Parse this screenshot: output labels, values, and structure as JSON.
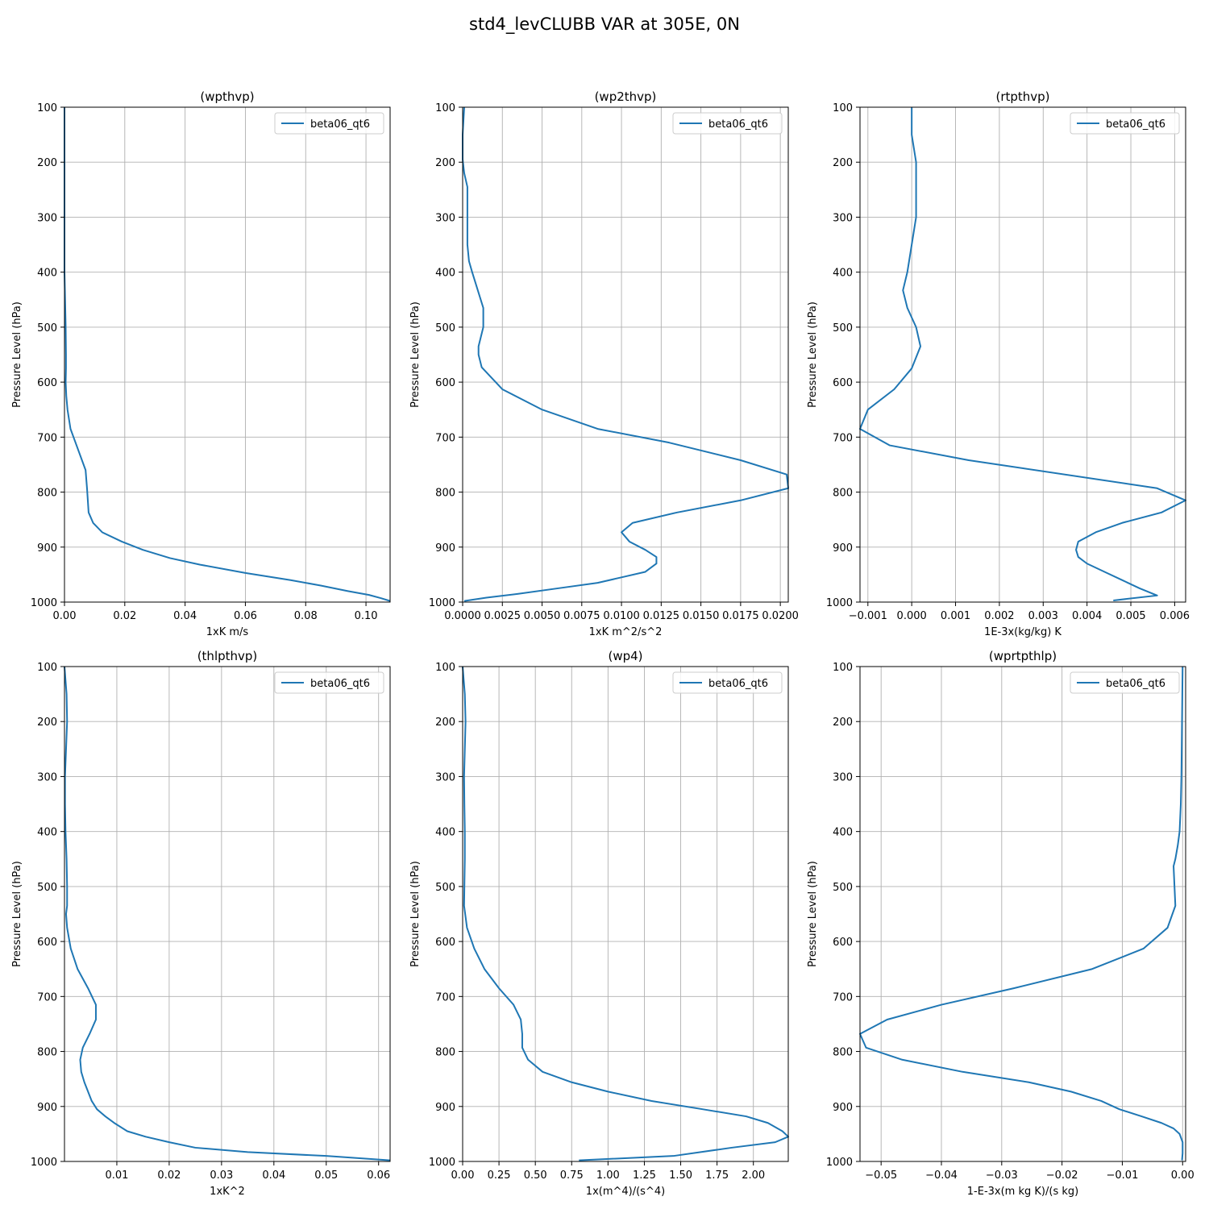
{
  "suptitle": "std4_levCLUBB VAR at 305E, 0N",
  "chart_data": [
    {
      "type": "line",
      "title": "(wpthvp)",
      "xlabel": "1xK m/s",
      "ylabel": "Pressure Level (hPa)",
      "xlim": [
        0.0,
        0.108
      ],
      "ylim": [
        1000,
        100
      ],
      "y_inverted": true,
      "xticks": [
        0.0,
        0.02,
        0.04,
        0.06,
        0.08,
        0.1
      ],
      "xticklabels": [
        "0.00",
        "0.02",
        "0.04",
        "0.06",
        "0.08",
        "0.10"
      ],
      "yticks": [
        100,
        200,
        300,
        400,
        500,
        600,
        700,
        800,
        900,
        1000
      ],
      "grid": true,
      "legend": "upper right",
      "series": [
        {
          "name": "beta06_qt6",
          "color": "#1f77b4",
          "x": [
            0.0,
            0.0,
            0.0,
            0.0,
            0.0,
            0.0002,
            0.0004,
            0.0005,
            0.0005,
            0.0004,
            0.0006,
            0.001,
            0.002,
            0.004,
            0.007,
            0.0075,
            0.008,
            0.0095,
            0.0125,
            0.019,
            0.026,
            0.035,
            0.045,
            0.06,
            0.075,
            0.085,
            0.094,
            0.101,
            0.105,
            0.108
          ],
          "y": [
            100,
            200,
            300,
            350,
            400,
            450,
            500,
            550,
            575,
            600,
            625,
            650,
            685,
            715,
            760,
            795,
            837,
            856,
            873,
            890,
            905,
            920,
            932,
            947,
            960,
            970,
            980,
            987,
            993,
            998
          ]
        }
      ]
    },
    {
      "type": "line",
      "title": "(wp2thvp)",
      "xlabel": "1xK m^2/s^2",
      "ylabel": "Pressure Level (hPa)",
      "xlim": [
        0.0,
        0.0205
      ],
      "ylim": [
        1000,
        100
      ],
      "y_inverted": true,
      "xticks": [
        0.0,
        0.0025,
        0.005,
        0.0075,
        0.01,
        0.0125,
        0.015,
        0.0175,
        0.02
      ],
      "xticklabels": [
        "0.0000",
        "0.0025",
        "0.0050",
        "0.0075",
        "0.0100",
        "0.0125",
        "0.0150",
        "0.0175",
        "0.0200"
      ],
      "yticks": [
        100,
        200,
        300,
        400,
        500,
        600,
        700,
        800,
        900,
        1000
      ],
      "grid": true,
      "legend": "upper right",
      "series": [
        {
          "name": "beta06_qt6",
          "color": "#1f77b4",
          "x": [
            0.0001,
            0.0,
            0.0,
            0.0001,
            0.0003,
            0.0003,
            0.0003,
            0.0004,
            0.0006,
            0.0013,
            0.0013,
            0.001,
            0.001,
            0.0012,
            0.0025,
            0.005,
            0.0085,
            0.013,
            0.0175,
            0.0204,
            0.0205,
            0.0175,
            0.0135,
            0.0107,
            0.01,
            0.0105,
            0.0115,
            0.0122,
            0.0122,
            0.0115,
            0.01,
            0.0085,
            0.006,
            0.0035,
            0.0015,
            0.0001
          ],
          "y": [
            100,
            150,
            195,
            220,
            245,
            300,
            350,
            380,
            400,
            465,
            500,
            535,
            550,
            573,
            613,
            650,
            685,
            710,
            742,
            768,
            793,
            815,
            837,
            856,
            873,
            890,
            905,
            918,
            930,
            945,
            955,
            965,
            975,
            985,
            992,
            998
          ]
        }
      ]
    },
    {
      "type": "line",
      "title": "(rtpthvp)",
      "xlabel": "1E-3x(kg/kg) K",
      "ylabel": "Pressure Level (hPa)",
      "xlim": [
        -0.00118,
        0.00625
      ],
      "ylim": [
        1000,
        100
      ],
      "y_inverted": true,
      "xticks": [
        -0.001,
        0.0,
        0.001,
        0.002,
        0.003,
        0.004,
        0.005,
        0.006
      ],
      "xticklabels": [
        "−0.001",
        "0.000",
        "0.001",
        "0.002",
        "0.003",
        "0.004",
        "0.005",
        "0.006"
      ],
      "yticks": [
        100,
        200,
        300,
        400,
        500,
        600,
        700,
        800,
        900,
        1000
      ],
      "grid": true,
      "legend": "upper right",
      "series": [
        {
          "name": "beta06_qt6",
          "color": "#1f77b4",
          "x": [
            0.0,
            0.0,
            0.0001,
            0.0001,
            0.0001,
            0.0,
            -0.0001,
            -0.0002,
            -0.0001,
            0.0001,
            0.0002,
            0.0,
            -0.0004,
            -0.001,
            -0.00118,
            -0.0005,
            0.0013,
            0.0056,
            0.00625,
            0.0057,
            0.0048,
            0.0042,
            0.0038,
            0.00375,
            0.0038,
            0.004,
            0.0044,
            0.0048,
            0.0052,
            0.0056,
            0.0046
          ],
          "y": [
            100,
            150,
            200,
            250,
            300,
            350,
            400,
            433,
            465,
            500,
            535,
            575,
            613,
            650,
            685,
            715,
            742,
            793,
            815,
            837,
            856,
            873,
            890,
            905,
            918,
            930,
            945,
            960,
            975,
            988,
            997
          ]
        }
      ]
    },
    {
      "type": "line",
      "title": "(thlpthvp)",
      "xlabel": "1xK^2",
      "ylabel": "Pressure Level (hPa)",
      "xlim": [
        0.0,
        0.0622
      ],
      "ylim": [
        1000,
        100
      ],
      "y_inverted": true,
      "xticks": [
        0.01,
        0.02,
        0.03,
        0.04,
        0.05,
        0.06
      ],
      "xticklabels": [
        "0.01",
        "0.02",
        "0.03",
        "0.04",
        "0.05",
        "0.06"
      ],
      "yticks": [
        100,
        200,
        300,
        400,
        500,
        600,
        700,
        800,
        900,
        1000
      ],
      "grid": true,
      "legend": "upper right",
      "series": [
        {
          "name": "beta06_qt6",
          "color": "#1f77b4",
          "x": [
            0.0,
            0.0004,
            0.0005,
            0.0003,
            0.0001,
            0.0001,
            0.0002,
            0.0004,
            0.0005,
            0.0005,
            0.0003,
            0.0005,
            0.0012,
            0.0025,
            0.0045,
            0.006,
            0.006,
            0.0048,
            0.0035,
            0.003,
            0.0032,
            0.0038,
            0.0045,
            0.0052,
            0.0062,
            0.0078,
            0.0095,
            0.012,
            0.0155,
            0.02,
            0.025,
            0.035,
            0.05,
            0.0622
          ],
          "y": [
            100,
            150,
            200,
            250,
            300,
            350,
            400,
            450,
            500,
            535,
            550,
            575,
            613,
            650,
            685,
            715,
            742,
            768,
            793,
            815,
            837,
            856,
            873,
            890,
            905,
            918,
            930,
            945,
            955,
            965,
            975,
            983,
            990,
            998
          ]
        }
      ]
    },
    {
      "type": "line",
      "title": "(wp4)",
      "xlabel": "1x(m^4)/(s^4)",
      "ylabel": "Pressure Level (hPa)",
      "xlim": [
        0.0,
        2.24
      ],
      "ylim": [
        1000,
        100
      ],
      "y_inverted": true,
      "xticks": [
        0.0,
        0.25,
        0.5,
        0.75,
        1.0,
        1.25,
        1.5,
        1.75,
        2.0
      ],
      "xticklabels": [
        "0.00",
        "0.25",
        "0.50",
        "0.75",
        "1.00",
        "1.25",
        "1.50",
        "1.75",
        "2.00"
      ],
      "yticks": [
        100,
        200,
        300,
        400,
        500,
        600,
        700,
        800,
        900,
        1000
      ],
      "grid": true,
      "legend": "upper right",
      "series": [
        {
          "name": "beta06_qt6",
          "color": "#1f77b4",
          "x": [
            0.0,
            0.015,
            0.02,
            0.015,
            0.01,
            0.012,
            0.015,
            0.015,
            0.012,
            0.01,
            0.03,
            0.08,
            0.15,
            0.25,
            0.35,
            0.4,
            0.41,
            0.41,
            0.45,
            0.55,
            0.75,
            1.0,
            1.3,
            1.65,
            1.95,
            2.1,
            2.2,
            2.24,
            2.15,
            1.85,
            1.45,
            0.8
          ],
          "y": [
            100,
            150,
            200,
            250,
            300,
            350,
            400,
            450,
            500,
            535,
            575,
            613,
            650,
            685,
            715,
            742,
            768,
            793,
            815,
            837,
            856,
            873,
            890,
            905,
            918,
            930,
            945,
            955,
            965,
            975,
            990,
            998
          ]
        }
      ]
    },
    {
      "type": "line",
      "title": "(wprtpthlp)",
      "xlabel": "1-E-3x(m kg K)/(s kg)",
      "ylabel": "Pressure Level (hPa)",
      "xlim": [
        -0.0535,
        0.0005
      ],
      "ylim": [
        1000,
        100
      ],
      "y_inverted": true,
      "xticks": [
        -0.05,
        -0.04,
        -0.03,
        -0.02,
        -0.01,
        0.0
      ],
      "xticklabels": [
        "−0.05",
        "−0.04",
        "−0.03",
        "−0.02",
        "−0.01",
        "0.00"
      ],
      "yticks": [
        100,
        200,
        300,
        400,
        500,
        600,
        700,
        800,
        900,
        1000
      ],
      "grid": true,
      "legend": "upper right",
      "series": [
        {
          "name": "beta06_qt6",
          "color": "#1f77b4",
          "x": [
            0.0,
            -0.0001,
            -0.0002,
            -0.0003,
            -0.0005,
            -0.0008,
            -0.0012,
            -0.0015,
            -0.0012,
            -0.0025,
            -0.0065,
            -0.015,
            -0.028,
            -0.04,
            -0.049,
            -0.0535,
            -0.0525,
            -0.0465,
            -0.0365,
            -0.0255,
            -0.0185,
            -0.0135,
            -0.0105,
            -0.0068,
            -0.0035,
            -0.0015,
            -0.0005,
            0.0,
            0.0,
            -0.0001
          ],
          "y": [
            100,
            200,
            300,
            350,
            400,
            425,
            450,
            463,
            535,
            575,
            613,
            650,
            685,
            715,
            742,
            768,
            793,
            815,
            837,
            856,
            873,
            890,
            905,
            918,
            930,
            940,
            950,
            965,
            985,
            998
          ]
        }
      ]
    }
  ]
}
